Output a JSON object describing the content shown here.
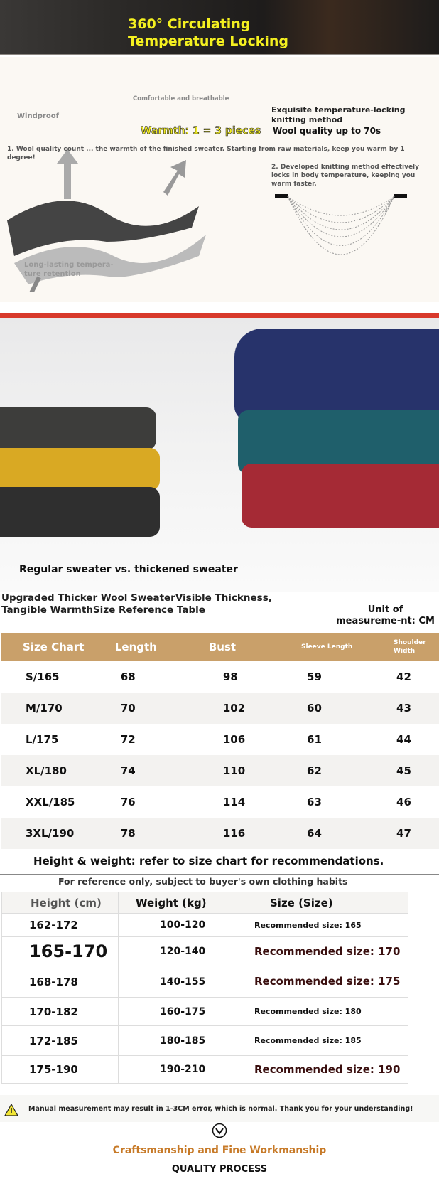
{
  "banner": {
    "title_line1": "360° Circulating",
    "title_line2": "Temperature Locking"
  },
  "intro": {
    "warmth": "Warmth: 1 = 3 pieces",
    "comfortable": "Comfortable and breathable",
    "windproof": "Windproof",
    "point1": "1. Wool quality count ... the warmth of the finished sweater. Starting from raw materials, keep you warm by 1 degree!",
    "retention": "Long-lasting tempera-ture retention",
    "knitting_title": "Exquisite temperature-locking knitting method",
    "wool_quality": "Wool quality up to 70s",
    "point2": "2. Developed knitting method effectively locks in body temperature, keeping you warm faster."
  },
  "photo": {
    "caption": "Regular sweater vs. thickened sweater"
  },
  "size_section": {
    "title_line1": "Upgraded Thicker Wool SweaterVisible Thickness,",
    "title_line2": "Tangible WarmthSize Reference Table",
    "unit": "Unit of measureme-nt: CM"
  },
  "size_table": {
    "headers": [
      "Size Chart",
      "Length",
      "Bust",
      "Sleeve Length",
      "Shoulder Width"
    ],
    "rows": [
      [
        "S/165",
        "68",
        "98",
        "59",
        "42"
      ],
      [
        "M/170",
        "70",
        "102",
        "60",
        "43"
      ],
      [
        "L/175",
        "72",
        "106",
        "61",
        "44"
      ],
      [
        "XL/180",
        "74",
        "110",
        "62",
        "45"
      ],
      [
        "XXL/185",
        "76",
        "114",
        "63",
        "46"
      ],
      [
        "3XL/190",
        "78",
        "116",
        "64",
        "47"
      ]
    ]
  },
  "hw_section": {
    "note": "Height & weight: refer to size chart for recommendations.",
    "subtitle": "For reference only, subject to buyer's own clothing habits"
  },
  "hw_table": {
    "headers": [
      "Height (cm)",
      "Weight (kg)",
      "Size (Size)"
    ],
    "rows": [
      [
        "162-172",
        "100-120",
        "Recommended size: 165"
      ],
      [
        "165-170",
        "120-140",
        "Recommended size: 170"
      ],
      [
        "168-178",
        "140-155",
        "Recommended size: 175"
      ],
      [
        "170-182",
        "160-175",
        "Recommended size: 180"
      ],
      [
        "172-185",
        "180-185",
        "Recommended size: 185"
      ],
      [
        "175-190",
        "190-210",
        "Recommended size: 190"
      ]
    ]
  },
  "warning": {
    "icon": "warning-triangle-icon",
    "text": "Manual measurement may result in 1-3CM error, which is normal. Thank you for your understanding!"
  },
  "footer": {
    "icon": "chevron-down-circle-icon",
    "craft": "Craftsmanship and Fine Workmanship",
    "quality": "QUALITY PROCESS"
  },
  "colors": {
    "banner_text": "#f4f020",
    "header_tan": "#c9a06a",
    "red_line": "#d8392b",
    "craft_orange": "#c77a28"
  }
}
